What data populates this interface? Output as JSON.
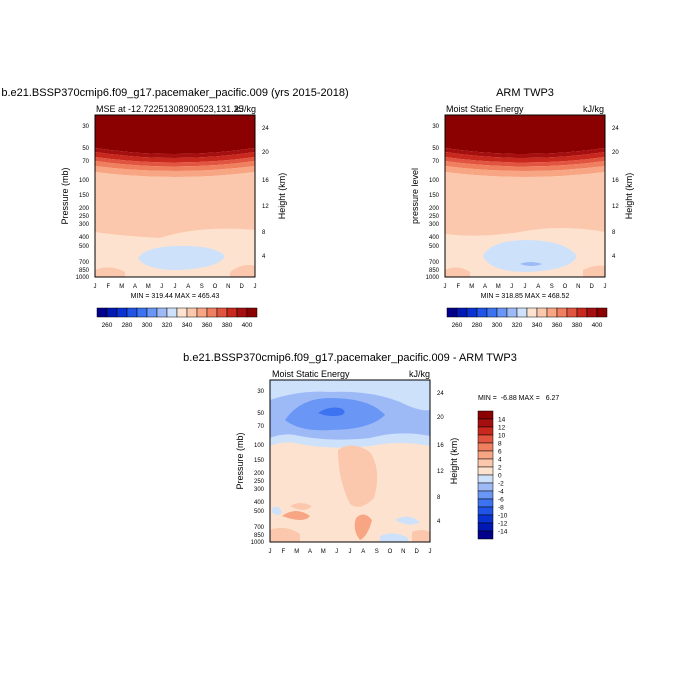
{
  "colors": {
    "mse_levels": [
      "#00008b",
      "#0019b4",
      "#0a32d2",
      "#1f54e6",
      "#3d73f0",
      "#6a96f5",
      "#9dbaf7",
      "#cde1fb",
      "#fde3cf",
      "#fcc8ad",
      "#f8a583",
      "#f07f5f",
      "#e1543f",
      "#c8281e",
      "#a50f0f",
      "#8b0000"
    ],
    "diff_levels": [
      "#00008b",
      "#0019b4",
      "#0a32d2",
      "#1f54e6",
      "#3d73f0",
      "#6a96f5",
      "#9dbaf7",
      "#cde1fb",
      "#fde3cf",
      "#fcc8ad",
      "#f8a583",
      "#f07f5f",
      "#e1543f",
      "#c8281e",
      "#a50f0f",
      "#8b0000"
    ]
  },
  "chart_data": [
    {
      "type": "contour",
      "title": "b.e21.BSSP370cmip6.f09_g17.pacemaker_pacific.009 (yrs 2015-2018)",
      "subtitle_left": "MSE at -12.72251308900523,131.25",
      "subtitle_right": "kJ/kg",
      "xlabel": "",
      "ylabel": "Pressure (mb)",
      "ylabel_right": "Height (km)",
      "x_ticks": [
        "J",
        "F",
        "M",
        "A",
        "M",
        "J",
        "J",
        "A",
        "S",
        "O",
        "N",
        "D",
        "J"
      ],
      "y_ticks": [
        "30",
        "50",
        "70",
        "100",
        "150",
        "200",
        "250",
        "300",
        "400",
        "500",
        "700",
        "850",
        "1000"
      ],
      "y_ticks_right": [
        "24",
        "20",
        "16",
        "12",
        "8",
        "4"
      ],
      "minmax_text": "MIN = 319.44 MAX = 465.43",
      "levels": [
        260,
        270,
        280,
        290,
        300,
        310,
        320,
        330,
        340,
        350,
        360,
        370,
        380,
        390,
        400
      ],
      "level_labels": [
        "260",
        "280",
        "300",
        "320",
        "340",
        "360",
        "380",
        "400"
      ]
    },
    {
      "type": "contour",
      "title": "ARM TWP3",
      "subtitle_left": "Moist Static Energy",
      "subtitle_right": "kJ/kg",
      "xlabel": "",
      "ylabel": "pressure level",
      "ylabel_right": "Height (km)",
      "x_ticks": [
        "J",
        "F",
        "M",
        "A",
        "M",
        "J",
        "J",
        "A",
        "S",
        "O",
        "N",
        "D",
        "J"
      ],
      "y_ticks": [
        "30",
        "50",
        "70",
        "100",
        "150",
        "200",
        "250",
        "300",
        "400",
        "500",
        "700",
        "850",
        "1000"
      ],
      "y_ticks_right": [
        "24",
        "20",
        "16",
        "12",
        "8",
        "4"
      ],
      "minmax_text": "MIN = 318.85 MAX = 468.52",
      "levels": [
        260,
        270,
        280,
        290,
        300,
        310,
        320,
        330,
        340,
        350,
        360,
        370,
        380,
        390,
        400
      ],
      "level_labels": [
        "260",
        "280",
        "300",
        "320",
        "340",
        "360",
        "380",
        "400"
      ]
    },
    {
      "type": "contour",
      "title": "b.e21.BSSP370cmip6.f09_g17.pacemaker_pacific.009 - ARM TWP3",
      "subtitle_left": "Moist Static Energy",
      "subtitle_right": "kJ/kg",
      "xlabel": "",
      "ylabel": "Pressure (mb)",
      "ylabel_right": "Height (km)",
      "x_ticks": [
        "J",
        "F",
        "M",
        "A",
        "M",
        "J",
        "J",
        "A",
        "S",
        "O",
        "N",
        "D",
        "J"
      ],
      "y_ticks": [
        "30",
        "50",
        "70",
        "100",
        "150",
        "200",
        "250",
        "300",
        "400",
        "500",
        "700",
        "850",
        "1000"
      ],
      "y_ticks_right": [
        "24",
        "20",
        "16",
        "12",
        "8",
        "4"
      ],
      "minmax_text": "MIN =  -6.88 MAX =   6.27",
      "levels": [
        -14,
        -12,
        -10,
        -8,
        -6,
        -4,
        -2,
        0,
        2,
        4,
        6,
        8,
        10,
        12,
        14
      ],
      "level_labels": [
        "14",
        "12",
        "10",
        "8",
        "6",
        "4",
        "2",
        "0",
        "-2",
        "-4",
        "-6",
        "-8",
        "-10",
        "-12",
        "-14"
      ]
    }
  ]
}
